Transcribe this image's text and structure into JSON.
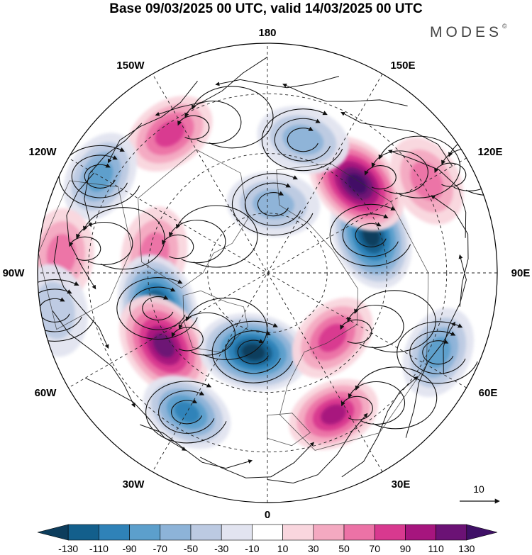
{
  "title": "Base 09/03/2025 00 UTC, valid 14/03/2025 00 UTC",
  "brand": {
    "name": "MODES",
    "mark": "©"
  },
  "longitude_labels": [
    {
      "id": "180",
      "text": "180"
    },
    {
      "id": "150E",
      "text": "150E"
    },
    {
      "id": "120E",
      "text": "120E"
    },
    {
      "id": "90E",
      "text": "90E"
    },
    {
      "id": "60E",
      "text": "60E"
    },
    {
      "id": "30E",
      "text": "30E"
    },
    {
      "id": "0",
      "text": "0"
    },
    {
      "id": "30W",
      "text": "30W"
    },
    {
      "id": "60W",
      "text": "60W"
    },
    {
      "id": "90W",
      "text": "90W"
    },
    {
      "id": "120W",
      "text": "120W"
    },
    {
      "id": "150W",
      "text": "150W"
    }
  ],
  "vector_scale": {
    "value": "10"
  },
  "colorbar": {
    "ticks": [
      "-130",
      "-110",
      "-90",
      "-70",
      "-50",
      "-30",
      "-10",
      "10",
      "30",
      "50",
      "70",
      "90",
      "110",
      "130"
    ],
    "colors": [
      "#0d3d5c",
      "#135f8c",
      "#2f82b8",
      "#5c9fcc",
      "#8db3d8",
      "#bccae2",
      "#e2e4f0",
      "#ffffff",
      "#f9d6de",
      "#f4a9c1",
      "#ec72a6",
      "#d8398f",
      "#a6157e",
      "#6b1275",
      "#3f1066"
    ]
  },
  "anomaly_centers": [
    {
      "lon": -145,
      "r": 0.74,
      "v": 70
    },
    {
      "lon": -120,
      "r": 0.84,
      "v": -70
    },
    {
      "lon": -95,
      "r": 0.9,
      "v": 50
    },
    {
      "lon": -100,
      "r": 0.5,
      "v": 60
    },
    {
      "lon": -80,
      "r": 0.94,
      "v": -30
    },
    {
      "lon": -72,
      "r": 0.5,
      "v": -130
    },
    {
      "lon": -55,
      "r": 0.55,
      "v": 115
    },
    {
      "lon": -30,
      "r": 0.7,
      "v": -90
    },
    {
      "lon": -10,
      "r": 0.35,
      "v": -130
    },
    {
      "lon": 25,
      "r": 0.68,
      "v": 90
    },
    {
      "lon": 45,
      "r": 0.4,
      "v": 80
    },
    {
      "lon": 65,
      "r": 0.82,
      "v": -70
    },
    {
      "lon": 110,
      "r": 0.48,
      "v": -130
    },
    {
      "lon": 135,
      "r": 0.55,
      "v": 125
    },
    {
      "lon": 120,
      "r": 0.8,
      "v": 60
    },
    {
      "lon": 165,
      "r": 0.6,
      "v": -50
    },
    {
      "lon": 175,
      "r": 0.3,
      "v": -50
    }
  ]
}
